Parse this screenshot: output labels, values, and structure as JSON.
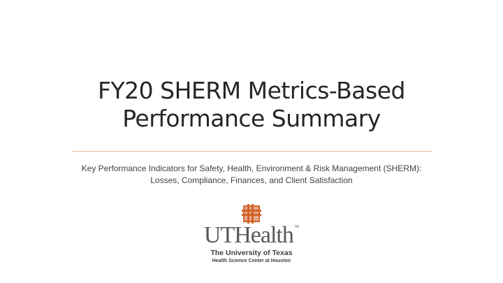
{
  "slide": {
    "title_line1": "FY20 SHERM Metrics-Based",
    "title_line2": "Performance Summary",
    "subtitle_line1": "Key Performance Indicators for Safety, Health, Environment & Risk Management (SHERM):",
    "subtitle_line2": "Losses, Compliance, Finances, and Client Satisfaction",
    "accent_color": "#d2642a",
    "rule_color": "#e0b99a"
  },
  "logo": {
    "wordmark": "UTHealth",
    "trademark": "TM",
    "line1": "The University of Texas",
    "line2": "Health Science Center at Houston"
  }
}
